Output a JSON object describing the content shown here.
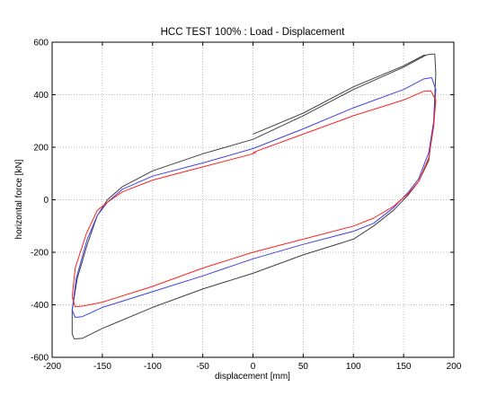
{
  "chart_data": {
    "type": "line",
    "title": "HCC TEST 100% : Load - Displacement",
    "xlabel": "displacement [mm]",
    "ylabel": "horizontal force [kN]",
    "xlim": [
      -200,
      200
    ],
    "ylim": [
      -600,
      600
    ],
    "xticks": [
      -200,
      -150,
      -100,
      -50,
      0,
      50,
      100,
      150,
      200
    ],
    "yticks": [
      -600,
      -400,
      -200,
      0,
      200,
      400,
      600
    ],
    "xtick_labels": [
      "-200",
      "-150",
      "-100",
      "-50",
      "0",
      "50",
      "100",
      "150",
      "200"
    ],
    "ytick_labels": [
      "-600",
      "-400",
      "-200",
      "0",
      "200",
      "400",
      "600"
    ],
    "grid": true,
    "legend": "none",
    "series": [
      {
        "color": "#404040",
        "points": [
          [
            0,
            250
          ],
          [
            50,
            330
          ],
          [
            100,
            430
          ],
          [
            150,
            510
          ],
          [
            170,
            550
          ],
          [
            178,
            555
          ],
          [
            181,
            555
          ],
          [
            182,
            480
          ],
          [
            180,
            300
          ],
          [
            175,
            150
          ],
          [
            165,
            70
          ],
          [
            155,
            20
          ],
          [
            140,
            -40
          ],
          [
            120,
            -100
          ],
          [
            100,
            -150
          ],
          [
            50,
            -210
          ],
          [
            0,
            -280
          ],
          [
            -50,
            -340
          ],
          [
            -100,
            -410
          ],
          [
            -150,
            -490
          ],
          [
            -170,
            -528
          ],
          [
            -178,
            -530
          ],
          [
            -180,
            -510
          ],
          [
            -180,
            -420
          ],
          [
            -175,
            -300
          ],
          [
            -165,
            -170
          ],
          [
            -155,
            -60
          ],
          [
            -145,
            0
          ],
          [
            -130,
            50
          ],
          [
            -100,
            110
          ],
          [
            -50,
            175
          ],
          [
            0,
            230
          ],
          [
            50,
            320
          ],
          [
            100,
            420
          ],
          [
            150,
            505
          ],
          [
            172,
            550
          ]
        ]
      },
      {
        "color": "#4040e0",
        "points": [
          [
            0,
            195
          ],
          [
            50,
            270
          ],
          [
            100,
            350
          ],
          [
            150,
            420
          ],
          [
            170,
            460
          ],
          [
            178,
            465
          ],
          [
            182,
            420
          ],
          [
            180,
            300
          ],
          [
            175,
            180
          ],
          [
            165,
            80
          ],
          [
            155,
            30
          ],
          [
            140,
            -30
          ],
          [
            120,
            -90
          ],
          [
            100,
            -120
          ],
          [
            50,
            -170
          ],
          [
            0,
            -225
          ],
          [
            -50,
            -290
          ],
          [
            -100,
            -350
          ],
          [
            -150,
            -410
          ],
          [
            -170,
            -445
          ],
          [
            -177,
            -448
          ],
          [
            -180,
            -420
          ],
          [
            -176,
            -300
          ],
          [
            -165,
            -150
          ],
          [
            -155,
            -60
          ],
          [
            -145,
            -10
          ],
          [
            -130,
            40
          ],
          [
            -100,
            90
          ],
          [
            -50,
            140
          ],
          [
            0,
            195
          ]
        ]
      },
      {
        "color": "#ff2020",
        "points": [
          [
            0,
            180
          ],
          [
            50,
            250
          ],
          [
            100,
            320
          ],
          [
            150,
            380
          ],
          [
            170,
            413
          ],
          [
            177,
            415
          ],
          [
            182,
            380
          ],
          [
            180,
            280
          ],
          [
            175,
            160
          ],
          [
            165,
            70
          ],
          [
            155,
            25
          ],
          [
            140,
            -25
          ],
          [
            120,
            -70
          ],
          [
            100,
            -100
          ],
          [
            50,
            -150
          ],
          [
            0,
            -200
          ],
          [
            -50,
            -260
          ],
          [
            -100,
            -330
          ],
          [
            -150,
            -390
          ],
          [
            -170,
            -405
          ],
          [
            -177,
            -408
          ],
          [
            -180,
            -370
          ],
          [
            -177,
            -260
          ],
          [
            -166,
            -130
          ],
          [
            -155,
            -40
          ],
          [
            -145,
            -10
          ],
          [
            -130,
            30
          ],
          [
            -100,
            75
          ],
          [
            -50,
            125
          ],
          [
            0,
            175
          ],
          [
            3,
            180
          ]
        ]
      }
    ]
  }
}
